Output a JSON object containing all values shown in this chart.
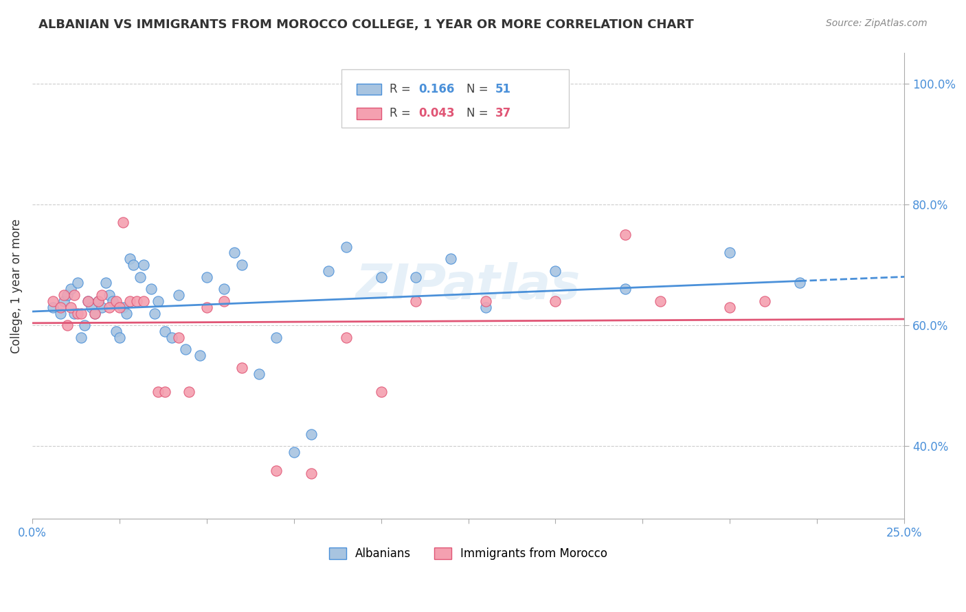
{
  "title": "ALBANIAN VS IMMIGRANTS FROM MOROCCO COLLEGE, 1 YEAR OR MORE CORRELATION CHART",
  "source": "Source: ZipAtlas.com",
  "ylabel": "College, 1 year or more",
  "xlim": [
    0.0,
    0.25
  ],
  "ylim": [
    0.28,
    1.05
  ],
  "watermark": "ZIPatlas",
  "albanians_color": "#a8c4e0",
  "morocco_color": "#f4a0b0",
  "line_albanian_color": "#4a90d9",
  "line_morocco_color": "#e05575",
  "albanians_x": [
    0.006,
    0.008,
    0.009,
    0.01,
    0.011,
    0.012,
    0.013,
    0.014,
    0.015,
    0.016,
    0.017,
    0.018,
    0.019,
    0.02,
    0.021,
    0.022,
    0.023,
    0.024,
    0.025,
    0.026,
    0.027,
    0.028,
    0.029,
    0.031,
    0.032,
    0.034,
    0.035,
    0.036,
    0.038,
    0.04,
    0.042,
    0.044,
    0.048,
    0.05,
    0.055,
    0.058,
    0.06,
    0.065,
    0.07,
    0.075,
    0.08,
    0.085,
    0.09,
    0.1,
    0.11,
    0.12,
    0.13,
    0.15,
    0.17,
    0.2,
    0.22
  ],
  "albanians_y": [
    0.63,
    0.62,
    0.64,
    0.65,
    0.66,
    0.62,
    0.67,
    0.58,
    0.6,
    0.64,
    0.63,
    0.62,
    0.64,
    0.63,
    0.67,
    0.65,
    0.64,
    0.59,
    0.58,
    0.63,
    0.62,
    0.71,
    0.7,
    0.68,
    0.7,
    0.66,
    0.62,
    0.64,
    0.59,
    0.58,
    0.65,
    0.56,
    0.55,
    0.68,
    0.66,
    0.72,
    0.7,
    0.52,
    0.58,
    0.39,
    0.42,
    0.69,
    0.73,
    0.68,
    0.68,
    0.71,
    0.63,
    0.69,
    0.66,
    0.72,
    0.67
  ],
  "morocco_x": [
    0.006,
    0.008,
    0.009,
    0.01,
    0.011,
    0.012,
    0.013,
    0.014,
    0.016,
    0.018,
    0.019,
    0.02,
    0.022,
    0.024,
    0.025,
    0.026,
    0.028,
    0.03,
    0.032,
    0.036,
    0.038,
    0.042,
    0.045,
    0.05,
    0.055,
    0.06,
    0.07,
    0.08,
    0.09,
    0.1,
    0.11,
    0.13,
    0.15,
    0.17,
    0.18,
    0.2,
    0.21
  ],
  "morocco_y": [
    0.64,
    0.63,
    0.65,
    0.6,
    0.63,
    0.65,
    0.62,
    0.62,
    0.64,
    0.62,
    0.64,
    0.65,
    0.63,
    0.64,
    0.63,
    0.77,
    0.64,
    0.64,
    0.64,
    0.49,
    0.49,
    0.58,
    0.49,
    0.63,
    0.64,
    0.53,
    0.36,
    0.355,
    0.58,
    0.49,
    0.64,
    0.64,
    0.64,
    0.75,
    0.64,
    0.63,
    0.64
  ],
  "grid_color": "#cccccc",
  "background_color": "#ffffff",
  "title_color": "#333333",
  "axis_color": "#4a90d9"
}
